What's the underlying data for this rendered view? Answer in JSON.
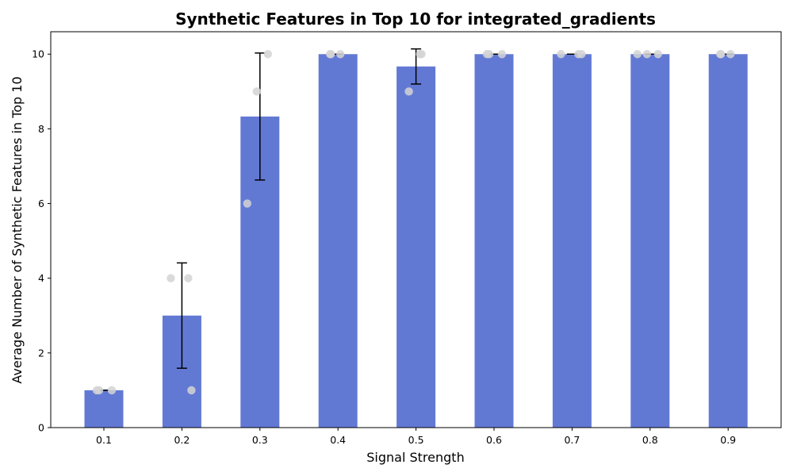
{
  "chart_data": {
    "type": "bar",
    "title": "Synthetic Features in Top 10 for integrated_gradients",
    "xlabel": "Signal Strength",
    "ylabel": "Average Number of Synthetic Features in Top 10",
    "categories": [
      "0.1",
      "0.2",
      "0.3",
      "0.4",
      "0.5",
      "0.6",
      "0.7",
      "0.8",
      "0.9"
    ],
    "values": [
      1,
      3,
      8.33,
      10,
      9.67,
      10,
      10,
      10,
      10
    ],
    "error": [
      0,
      1.41,
      1.7,
      0,
      0.47,
      0,
      0,
      0,
      0
    ],
    "points": [
      [
        1,
        1,
        1
      ],
      [
        4,
        4,
        1
      ],
      [
        9,
        10,
        6
      ],
      [
        10,
        10,
        10
      ],
      [
        10,
        10,
        9
      ],
      [
        10,
        10,
        10
      ],
      [
        10,
        10,
        10
      ],
      [
        10,
        10,
        10
      ],
      [
        10,
        10,
        10
      ]
    ],
    "yticks": [
      "0",
      "2",
      "4",
      "6",
      "8",
      "10"
    ],
    "ylim": [
      0,
      10.6
    ],
    "grid": false,
    "colors": {
      "bar": "#6279d4",
      "point": "#d3d3d3",
      "error": "#000000"
    }
  }
}
